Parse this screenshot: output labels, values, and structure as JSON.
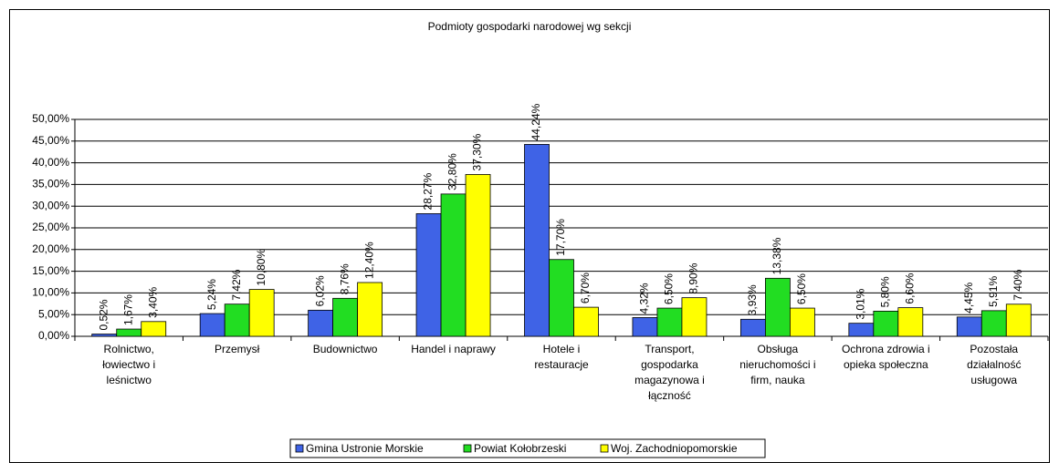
{
  "chart_data": {
    "type": "bar",
    "title": "Podmioty gospodarki narodowej wg sekcji",
    "categories": [
      "Rolnictwo,\nłowiectwo i\nleśnictwo",
      "Przemysł",
      "Budownictwo",
      "Handel i naprawy",
      "Hotele i\nrestauracje",
      "Transport,\ngospodarka\nmagazynowa i\nłączność",
      "Obsługa\nnieruchomości i\nfirm, nauka",
      "Ochrona zdrowia i\nopieka społeczna",
      "Pozostała\ndziałalność\nusługowa"
    ],
    "series": [
      {
        "name": "Gmina Ustronie Morskie",
        "color": "#3f63e6",
        "values": [
          0.52,
          5.24,
          6.02,
          28.27,
          44.24,
          4.32,
          3.93,
          3.01,
          4.45
        ],
        "value_labels": [
          "0,52%",
          "5,24%",
          "6,02%",
          "28,27%",
          "44,24%",
          "4,32%",
          "3,93%",
          "3,01%",
          "4,45%"
        ]
      },
      {
        "name": "Powiat Kołobrzeski",
        "color": "#22dd22",
        "values": [
          1.67,
          7.42,
          8.76,
          32.8,
          17.7,
          6.5,
          13.38,
          5.8,
          5.91
        ],
        "value_labels": [
          "1,67%",
          "7,42%",
          "8,76%",
          "32,80%",
          "17,70%",
          "6,50%",
          "13,38%",
          "5,80%",
          "5,91%"
        ]
      },
      {
        "name": "Woj. Zachodniopomorskie",
        "color": "#ffff00",
        "values": [
          3.4,
          10.8,
          12.4,
          37.3,
          6.7,
          8.9,
          6.5,
          6.6,
          7.4
        ],
        "value_labels": [
          "3,40%",
          "10,80%",
          "12,40%",
          "37,30%",
          "6,70%",
          "8,90%",
          "6,50%",
          "6,60%",
          "7,40%"
        ]
      }
    ],
    "ylim": [
      0,
      50
    ],
    "yticks": [
      {
        "value": 0,
        "label": "0,00%"
      },
      {
        "value": 5,
        "label": "5,00%"
      },
      {
        "value": 10,
        "label": "10,00%"
      },
      {
        "value": 15,
        "label": "15,00%"
      },
      {
        "value": 20,
        "label": "20,00%"
      },
      {
        "value": 25,
        "label": "25,00%"
      },
      {
        "value": 30,
        "label": "30,00%"
      },
      {
        "value": 35,
        "label": "35,00%"
      },
      {
        "value": 40,
        "label": "40,00%"
      },
      {
        "value": 45,
        "label": "45,00%"
      },
      {
        "value": 50,
        "label": "50,00%"
      }
    ],
    "grid": true,
    "legend": "bottom"
  }
}
